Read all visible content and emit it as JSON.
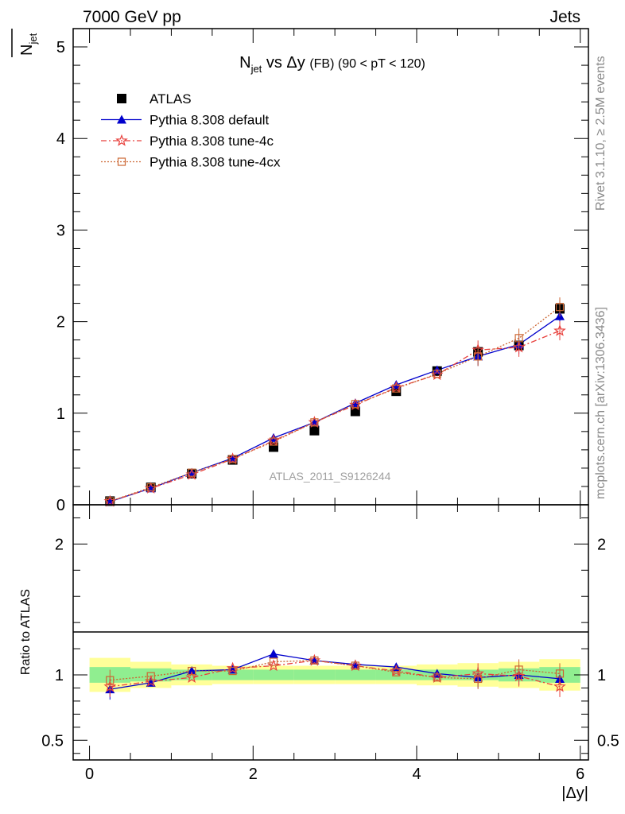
{
  "header": {
    "energy_label": "7000 GeV pp",
    "category_label": "Jets"
  },
  "side_labels": {
    "rivet": "Rivet 3.1.10, ≥ 2.5M events",
    "mcplots": "mcplots.cern.ch [arXiv:1306.3436]"
  },
  "chart_data": [
    {
      "type": "line",
      "title_main": "N",
      "title_sub": "jet",
      "title_rest": " vs Δy ",
      "title_small": "(FB) (90 < pT < 120)",
      "ylabel_main": "N",
      "ylabel_sub": "jet",
      "watermark": "ATLAS_2011_S9126244",
      "xlim": [
        -0.2,
        6.1
      ],
      "ylim": [
        0,
        5.2
      ],
      "y_ticks": [
        0,
        1,
        2,
        3,
        4,
        5
      ],
      "y_tick_labels": [
        "0",
        "1",
        "2",
        "3",
        "4",
        "5"
      ],
      "x": [
        0.25,
        0.75,
        1.25,
        1.75,
        2.25,
        2.75,
        3.25,
        3.75,
        4.25,
        4.75,
        5.25,
        5.75
      ],
      "series": [
        {
          "name": "ATLAS",
          "color": "#000000",
          "marker": "square",
          "values": [
            0.04,
            0.19,
            0.34,
            0.49,
            0.63,
            0.81,
            1.02,
            1.24,
            1.46,
            1.67,
            1.74,
            2.14
          ]
        },
        {
          "name": "Pythia 8.308 default",
          "color": "#0000cc",
          "marker": "triangle",
          "values": [
            0.035,
            0.18,
            0.35,
            0.51,
            0.73,
            0.9,
            1.11,
            1.31,
            1.47,
            1.62,
            1.75,
            2.06
          ]
        },
        {
          "name": "Pythia 8.308 tune-4c",
          "color": "#e8413d",
          "marker": "star",
          "values": [
            0.037,
            0.18,
            0.33,
            0.5,
            0.7,
            0.9,
            1.09,
            1.28,
            1.42,
            1.69,
            1.72,
            1.9
          ]
        },
        {
          "name": "Pythia 8.308 tune-4cx",
          "color": "#cc6633",
          "marker": "open-square",
          "values": [
            0.038,
            0.19,
            0.35,
            0.5,
            0.69,
            0.9,
            1.1,
            1.27,
            1.43,
            1.62,
            1.82,
            2.16
          ]
        }
      ]
    },
    {
      "type": "line",
      "ylabel": "Ratio to ATLAS",
      "xlabel": "|Δy|",
      "xlim": [
        -0.2,
        6.1
      ],
      "ylim": [
        0.35,
        2.3
      ],
      "y_ticks": [
        0.5,
        1,
        2
      ],
      "y_tick_labels": [
        "0.5",
        "1",
        "2"
      ],
      "x_ticks": [
        0,
        2,
        4,
        6
      ],
      "x_tick_labels": [
        "0",
        "2",
        "4",
        "6"
      ],
      "x": [
        0.25,
        0.75,
        1.25,
        1.75,
        2.25,
        2.75,
        3.25,
        3.75,
        4.25,
        4.75,
        5.25,
        5.75
      ],
      "bins": [
        0,
        0.5,
        1,
        1.5,
        2,
        2.5,
        3,
        3.5,
        4,
        4.5,
        5,
        5.5,
        6
      ],
      "band_inner": [
        [
          0.94,
          1.06
        ],
        [
          0.95,
          1.05
        ],
        [
          0.96,
          1.04
        ],
        [
          0.96,
          1.04
        ],
        [
          0.96,
          1.04
        ],
        [
          0.96,
          1.04
        ],
        [
          0.96,
          1.04
        ],
        [
          0.96,
          1.04
        ],
        [
          0.96,
          1.04
        ],
        [
          0.96,
          1.04
        ],
        [
          0.95,
          1.05
        ],
        [
          0.94,
          1.06
        ]
      ],
      "band_outer": [
        [
          0.87,
          1.13
        ],
        [
          0.9,
          1.1
        ],
        [
          0.92,
          1.08
        ],
        [
          0.93,
          1.07
        ],
        [
          0.93,
          1.07
        ],
        [
          0.93,
          1.07
        ],
        [
          0.93,
          1.07
        ],
        [
          0.93,
          1.07
        ],
        [
          0.92,
          1.08
        ],
        [
          0.91,
          1.09
        ],
        [
          0.9,
          1.1
        ],
        [
          0.88,
          1.12
        ]
      ],
      "band_colors": {
        "inner": "#90ee90",
        "outer": "#ffff99"
      },
      "series": [
        {
          "name": "Pythia 8.308 default",
          "color": "#0000cc",
          "marker": "triangle",
          "values": [
            0.89,
            0.94,
            1.03,
            1.04,
            1.16,
            1.11,
            1.08,
            1.06,
            1.01,
            0.98,
            1.0,
            0.97
          ]
        },
        {
          "name": "Pythia 8.308 tune-4c",
          "color": "#e8413d",
          "marker": "star",
          "values": [
            0.91,
            0.95,
            0.98,
            1.05,
            1.07,
            1.11,
            1.07,
            1.03,
            0.98,
            1.01,
            0.99,
            0.91
          ]
        },
        {
          "name": "Pythia 8.308 tune-4cx",
          "color": "#cc6633",
          "marker": "open-square",
          "values": [
            0.96,
            0.99,
            1.03,
            1.03,
            1.1,
            1.11,
            1.07,
            1.02,
            0.98,
            0.97,
            1.04,
            1.01
          ]
        }
      ]
    }
  ]
}
